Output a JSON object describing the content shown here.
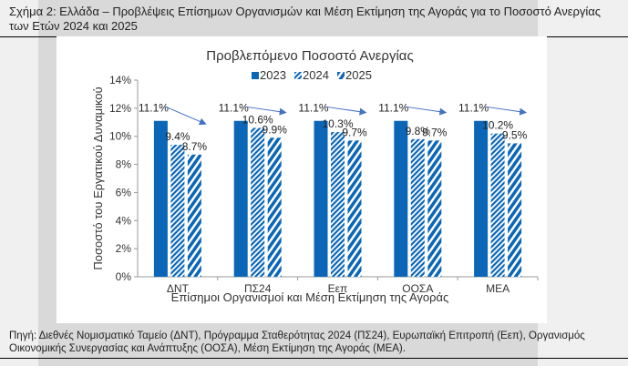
{
  "figure_title": "Σχήμα 2: Ελλάδα – Προβλέψεις Επίσημων Οργανισμών και Μέση Εκτίμηση της Αγοράς για το Ποσοστό Ανεργίας των Ετών 2024 και 2025",
  "source": "Πηγή: Διεθνές Νομισματικό Ταμείο (ΔΝΤ), Πρόγραμμα Σταθερότητας 2024 (ΠΣ24), Ευρωπαϊκή Επιτροπή (Εεπ), Οργανισμός Οικονομικής Συνεργασίας και Ανάπτυξης (ΟΟΣΑ), Μέση Εκτίμηση της Αγοράς (ΜΕΑ).",
  "chart_data": {
    "type": "bar",
    "title": "Προβλεπόμενο Ποσοστό Ανεργίας",
    "xlabel": "Επίσημοι Οργανισμοί και Μέση Εκτίμηση της Αγοράς",
    "ylabel": "Ποσοστό του Εργατικού Δυναμικού",
    "ylim": [
      0,
      14
    ],
    "yticks": [
      "0%",
      "2%",
      "4%",
      "6%",
      "8%",
      "10%",
      "12%",
      "14%"
    ],
    "categories": [
      "ΔΝΤ",
      "ΠΣ24",
      "Εεπ",
      "ΟΟΣΑ",
      "ΜΕΑ"
    ],
    "legend_position": "top",
    "grid": false,
    "series": [
      {
        "name": "2023",
        "values": [
          11.1,
          11.1,
          11.1,
          11.1,
          11.1
        ],
        "labels": [
          "11.1%",
          "11.1%",
          "11.1%",
          "11.1%",
          "11.1%"
        ],
        "fill": "solid"
      },
      {
        "name": "2024",
        "values": [
          9.4,
          10.6,
          10.3,
          9.8,
          10.2
        ],
        "labels": [
          "9.4%",
          "10.6%",
          "10.3%",
          "9.8%",
          "10.2%"
        ],
        "fill": "dense-hatch"
      },
      {
        "name": "2025",
        "values": [
          8.7,
          9.9,
          9.7,
          9.7,
          9.5
        ],
        "labels": [
          "8.7%",
          "9.9%",
          "9.7%",
          "9.7%",
          "9.5%"
        ],
        "fill": "wide-hatch"
      }
    ],
    "annotations": "downward arrows per group",
    "colors": {
      "bar": "#0b66b8",
      "arrow": "#4472c4"
    }
  }
}
